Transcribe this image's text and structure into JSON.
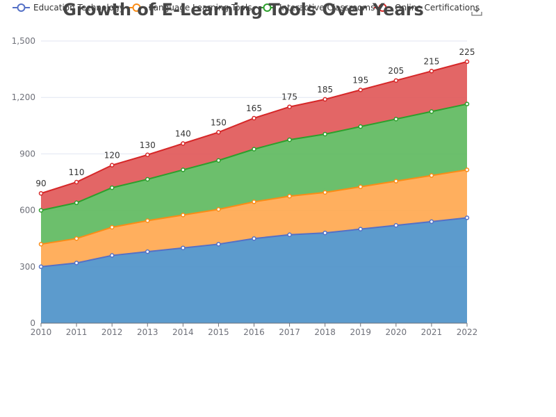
{
  "chart_data": {
    "type": "area",
    "stacked": true,
    "title": "Growth of E-Learning Tools Over Years",
    "categories": [
      "2010",
      "2011",
      "2012",
      "2013",
      "2014",
      "2015",
      "2016",
      "2017",
      "2018",
      "2019",
      "2020",
      "2021",
      "2022"
    ],
    "ylim": [
      0,
      1500
    ],
    "yticks": [
      0,
      300,
      600,
      900,
      1200,
      1500
    ],
    "ytick_labels": [
      "0",
      "300",
      "600",
      "900",
      "1,200",
      "1,500"
    ],
    "grid": true,
    "legend_position": "top",
    "series": [
      {
        "name": "Education Technology",
        "color": "#5470c6",
        "fill": "#4a90c8",
        "values": [
          300,
          320,
          360,
          380,
          400,
          420,
          450,
          470,
          480,
          500,
          520,
          540,
          560
        ]
      },
      {
        "name": "Language Learning Tools",
        "color": "#fa8c16",
        "fill": "#ffa64d",
        "values": [
          120,
          130,
          150,
          165,
          175,
          185,
          195,
          205,
          215,
          225,
          235,
          245,
          255
        ]
      },
      {
        "name": "Interactive Classrooms",
        "color": "#2ca02c",
        "fill": "#5cb85c",
        "values": [
          180,
          190,
          210,
          220,
          240,
          260,
          280,
          300,
          310,
          320,
          330,
          340,
          350
        ]
      },
      {
        "name": "Online Certifications",
        "color": "#d62728",
        "fill": "#e05555",
        "values": [
          90,
          110,
          120,
          130,
          140,
          150,
          165,
          175,
          185,
          195,
          205,
          215,
          225
        ]
      }
    ],
    "data_labels_series": "Online Certifications"
  },
  "toolbox": {
    "icon": "download-icon"
  }
}
